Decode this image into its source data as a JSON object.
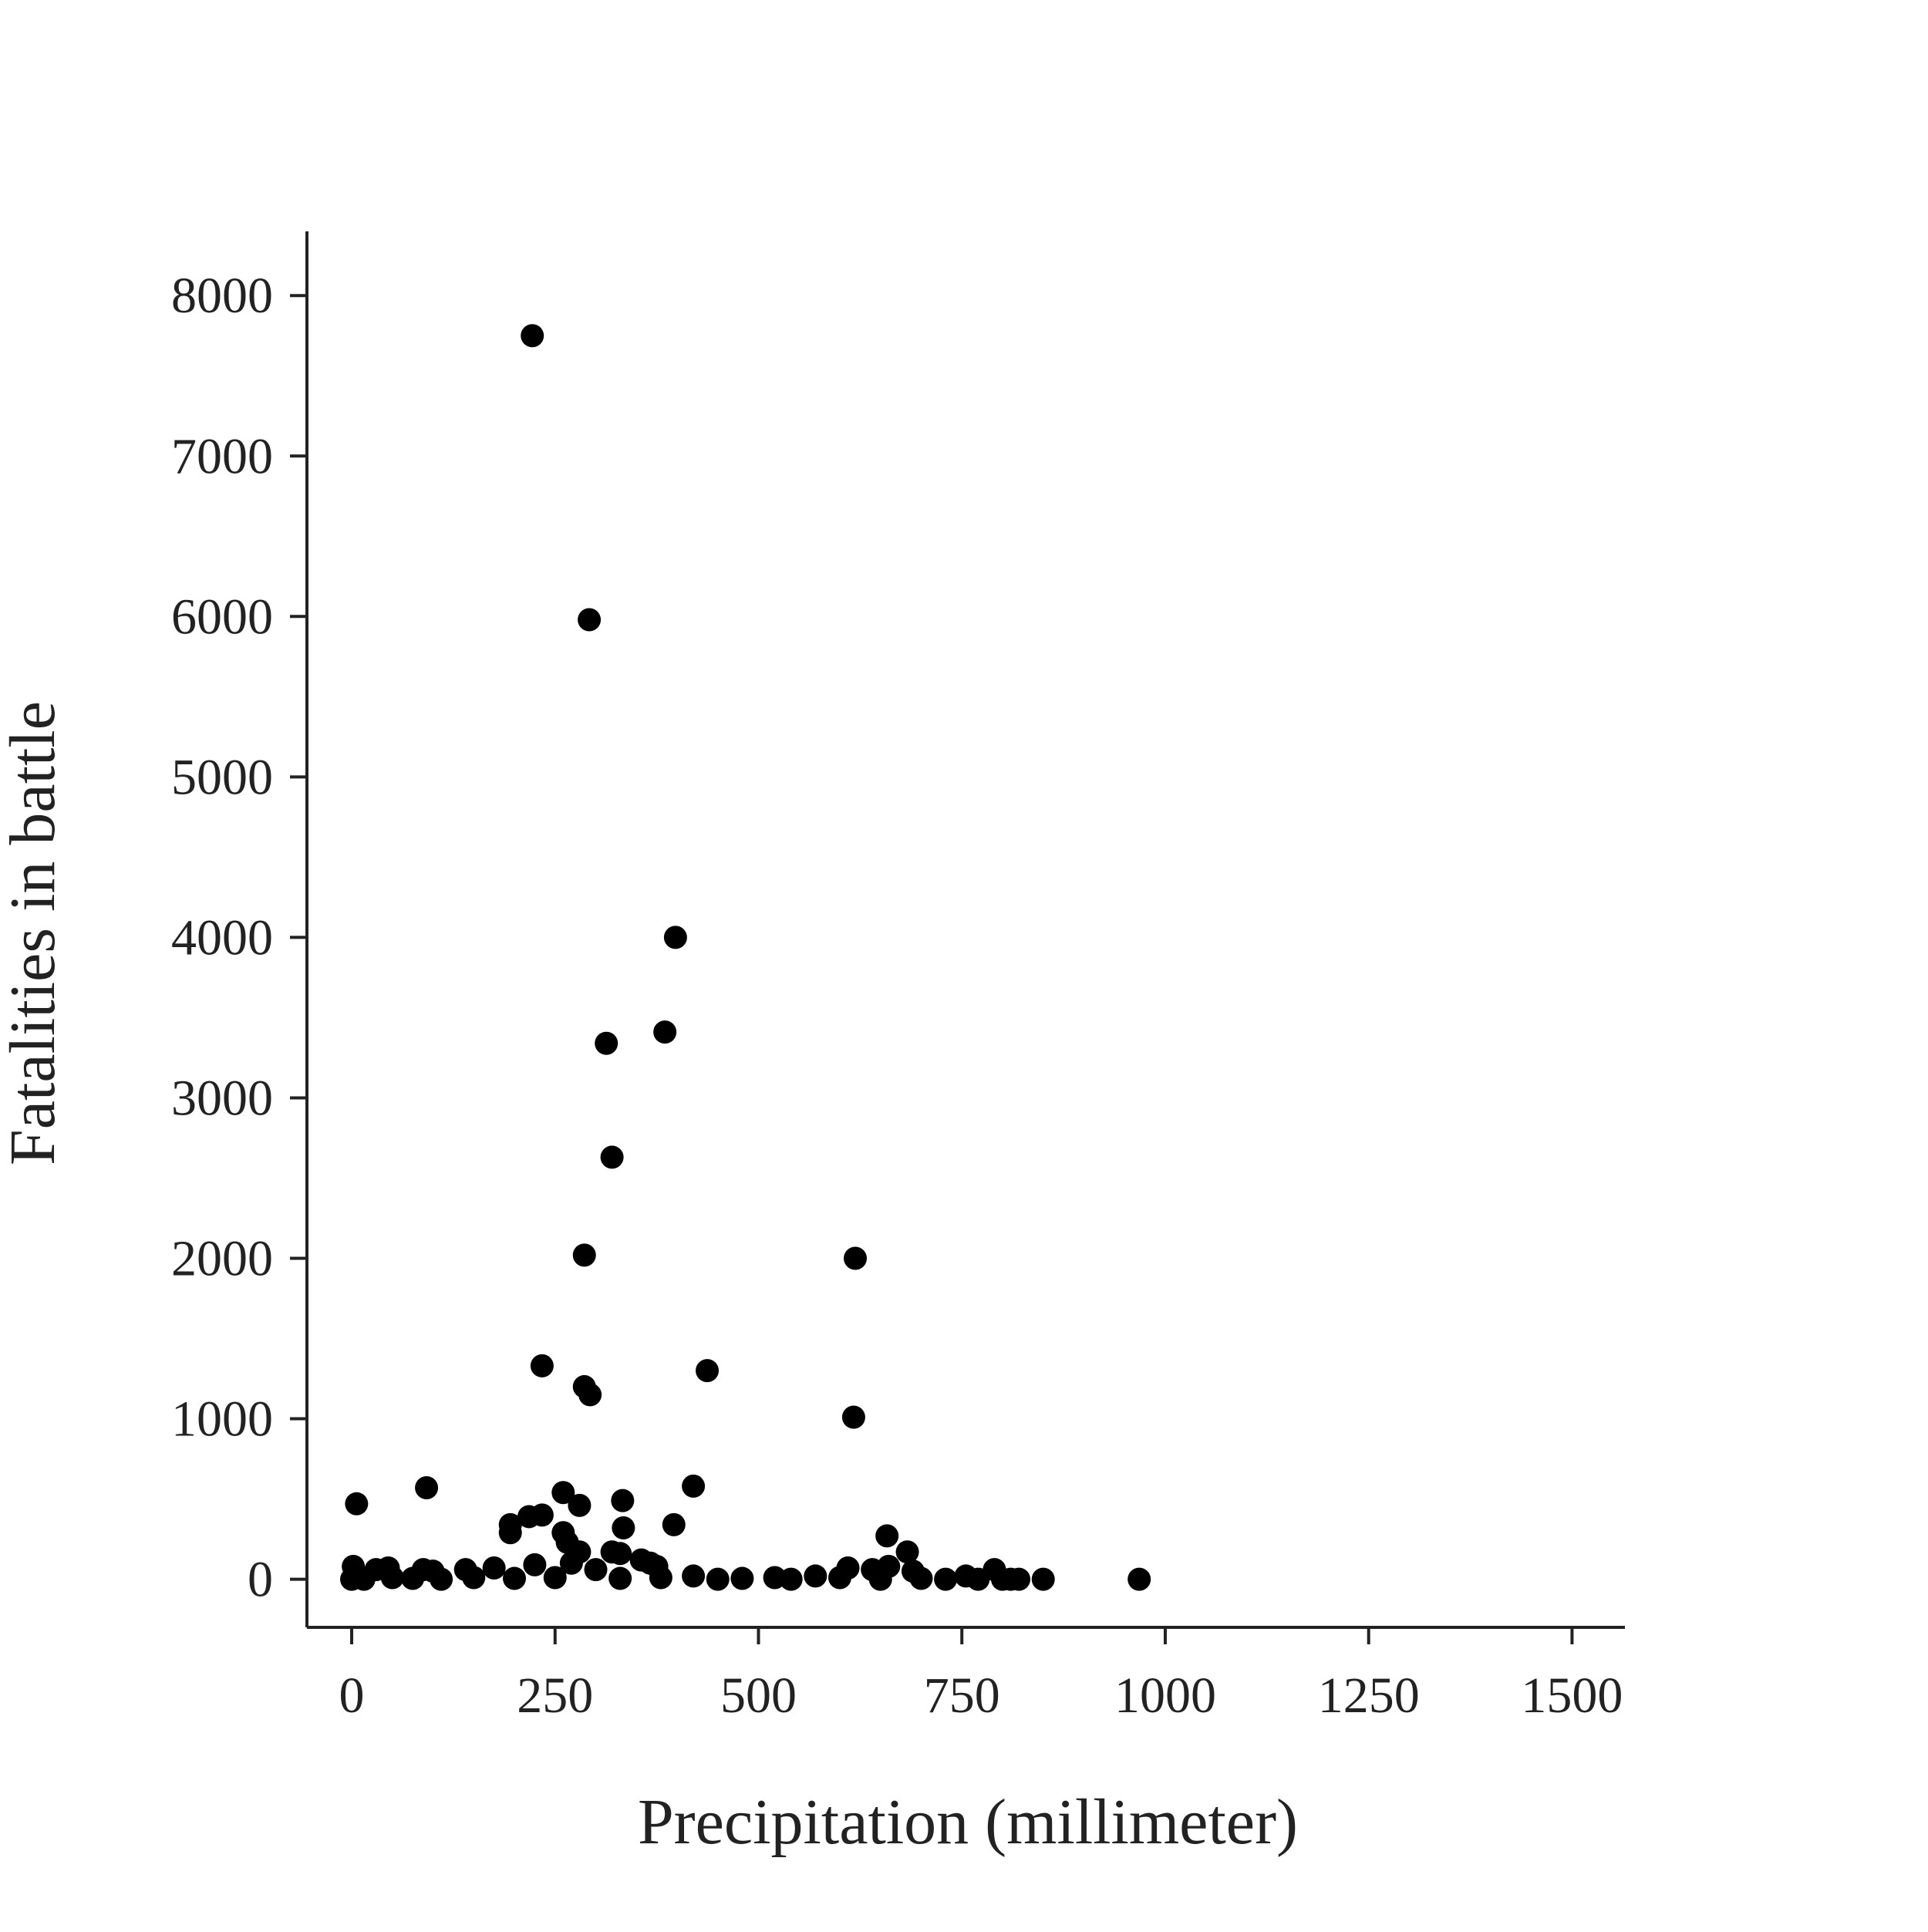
{
  "chart_data": {
    "type": "scatter",
    "title": "",
    "xlabel": "Precipitation (millimeter)",
    "ylabel": "Fatalities in battle",
    "xlim": [
      -55,
      1565
    ],
    "ylim": [
      -300,
      8400
    ],
    "xticks": [
      0,
      250,
      500,
      750,
      1000,
      1250,
      1500
    ],
    "xtick_labels": [
      "0",
      "250",
      "500",
      "750",
      "1000",
      "1250",
      "1500"
    ],
    "yticks": [
      0,
      1000,
      2000,
      3000,
      4000,
      5000,
      6000,
      7000,
      8000
    ],
    "ytick_labels": [
      "0",
      "1000",
      "2000",
      "3000",
      "4000",
      "5000",
      "6000",
      "7000",
      "8000"
    ],
    "grid": false,
    "legend": "none",
    "marker_color": "#000000",
    "axis_color": "#222222",
    "series": [
      {
        "points": [
          [
            222,
            7750
          ],
          [
            292,
            5980
          ],
          [
            398,
            4000
          ],
          [
            385,
            3410
          ],
          [
            313,
            3340
          ],
          [
            320,
            2630
          ],
          [
            286,
            2020
          ],
          [
            619,
            2000
          ],
          [
            234,
            1330
          ],
          [
            437,
            1300
          ],
          [
            286,
            1200
          ],
          [
            293,
            1150
          ],
          [
            617,
            1010
          ],
          [
            420,
            580
          ],
          [
            92,
            570
          ],
          [
            6,
            470
          ],
          [
            260,
            540
          ],
          [
            280,
            460
          ],
          [
            333,
            490
          ],
          [
            218,
            390
          ],
          [
            234,
            400
          ],
          [
            195,
            340
          ],
          [
            195,
            290
          ],
          [
            396,
            340
          ],
          [
            334,
            320
          ],
          [
            658,
            270
          ],
          [
            260,
            290
          ],
          [
            265,
            230
          ],
          [
            683,
            170
          ],
          [
            280,
            170
          ],
          [
            320,
            170
          ],
          [
            330,
            160
          ],
          [
            356,
            120
          ],
          [
            367,
            100
          ],
          [
            375,
            80
          ],
          [
            225,
            90
          ],
          [
            610,
            70
          ],
          [
            640,
            60
          ],
          [
            660,
            80
          ],
          [
            690,
            50
          ],
          [
            790,
            60
          ],
          [
            2,
            80
          ],
          [
            30,
            60
          ],
          [
            45,
            70
          ],
          [
            88,
            60
          ],
          [
            100,
            50
          ],
          [
            140,
            60
          ],
          [
            175,
            70
          ],
          [
            270,
            100
          ],
          [
            300,
            60
          ],
          [
            420,
            20
          ],
          [
            520,
            10
          ],
          [
            570,
            20
          ],
          [
            755,
            20
          ],
          [
            850,
            0
          ],
          [
            968,
            0
          ],
          [
            0,
            0
          ],
          [
            15,
            0
          ],
          [
            50,
            10
          ],
          [
            75,
            5
          ],
          [
            110,
            0
          ],
          [
            150,
            10
          ],
          [
            200,
            5
          ],
          [
            250,
            10
          ],
          [
            330,
            5
          ],
          [
            380,
            10
          ],
          [
            450,
            0
          ],
          [
            480,
            5
          ],
          [
            540,
            0
          ],
          [
            600,
            10
          ],
          [
            650,
            0
          ],
          [
            700,
            5
          ],
          [
            730,
            0
          ],
          [
            770,
            0
          ],
          [
            800,
            0
          ],
          [
            810,
            0
          ],
          [
            820,
            0
          ]
        ]
      }
    ]
  }
}
